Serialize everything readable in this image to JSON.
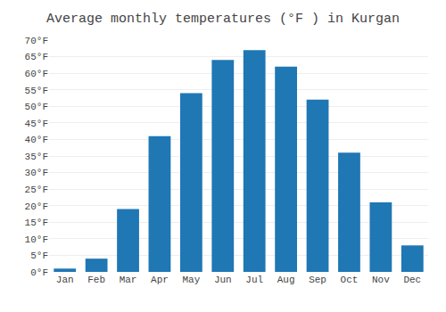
{
  "chart_data": {
    "type": "bar",
    "title": "Average monthly temperatures (°F ) in Kurgan",
    "categories": [
      "Jan",
      "Feb",
      "Mar",
      "Apr",
      "May",
      "Jun",
      "Jul",
      "Aug",
      "Sep",
      "Oct",
      "Nov",
      "Dec"
    ],
    "values": [
      1,
      4,
      19,
      41,
      54,
      64,
      67,
      62,
      52,
      36,
      21,
      8
    ],
    "ylim": [
      0,
      70
    ],
    "yticks": [
      {
        "value": 0,
        "label": "0°F"
      },
      {
        "value": 5,
        "label": "5°F"
      },
      {
        "value": 10,
        "label": "10°F"
      },
      {
        "value": 15,
        "label": "15°F"
      },
      {
        "value": 20,
        "label": "20°F"
      },
      {
        "value": 25,
        "label": "25°F"
      },
      {
        "value": 30,
        "label": "30°F"
      },
      {
        "value": 35,
        "label": "35°F"
      },
      {
        "value": 40,
        "label": "40°F"
      },
      {
        "value": 45,
        "label": "45°F"
      },
      {
        "value": 50,
        "label": "50°F"
      },
      {
        "value": 55,
        "label": "55°F"
      },
      {
        "value": 60,
        "label": "60°F"
      },
      {
        "value": 65,
        "label": "65°F"
      },
      {
        "value": 70,
        "label": "70°F"
      }
    ],
    "grid": true
  }
}
